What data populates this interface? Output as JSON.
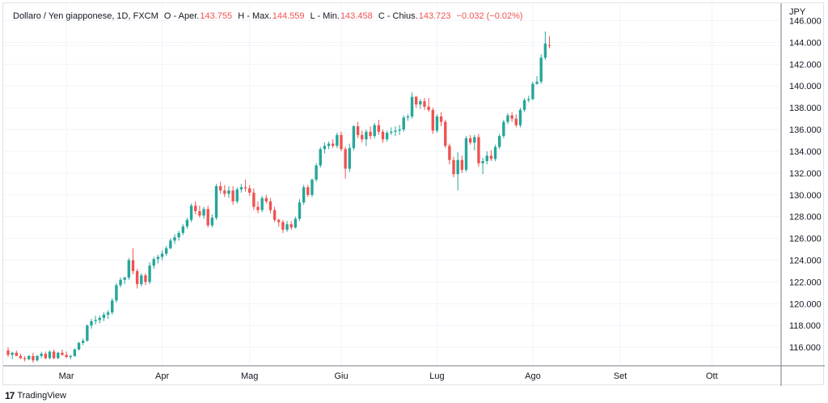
{
  "legend": {
    "symbol": "Dollaro / Yen giapponese, 1D, FXCM",
    "open_label": "O - Aper.",
    "open": "143.755",
    "high_label": "H - Max.",
    "high": "144.559",
    "low_label": "L - Min.",
    "low": "143.458",
    "close_label": "C - Chius.",
    "close": "143.723",
    "change": "−0.032 (−0.02%)"
  },
  "footer": {
    "logo": "17",
    "brand": "TradingView"
  },
  "colors": {
    "up": "#26a69a",
    "down": "#ef5350",
    "grid": "#f0f3fa",
    "axis": "#787b86"
  },
  "chart_data": {
    "type": "candlestick",
    "title": "Dollaro / Yen giapponese, 1D, FXCM",
    "currency_label": "JPY",
    "ylim": [
      114.3,
      147.6
    ],
    "y_ticks": [
      116,
      118,
      120,
      122,
      124,
      126,
      128,
      130,
      132,
      134,
      136,
      138,
      140,
      142,
      144,
      146
    ],
    "y_tick_labels": [
      "116.000",
      "118.000",
      "120.000",
      "122.000",
      "124.000",
      "126.000",
      "128.000",
      "130.000",
      "132.000",
      "134.000",
      "136.000",
      "138.000",
      "140.000",
      "142.000",
      "144.000",
      "146.000"
    ],
    "x_labels": [
      "Mar",
      "Apr",
      "Mag",
      "Giu",
      "Lug",
      "Ago",
      "Set",
      "Ott"
    ],
    "x_label_index": [
      14,
      37,
      58,
      80,
      103,
      126,
      147,
      169
    ],
    "last_price": 143.723,
    "ohlc": [
      [
        115.7,
        116.0,
        115.1,
        115.3
      ],
      [
        115.3,
        115.6,
        114.9,
        115.5
      ],
      [
        115.5,
        115.7,
        115.2,
        115.2
      ],
      [
        115.2,
        115.4,
        114.9,
        115.0
      ],
      [
        115.0,
        115.2,
        114.7,
        114.9
      ],
      [
        114.9,
        115.3,
        114.8,
        115.2
      ],
      [
        115.2,
        115.5,
        114.6,
        114.8
      ],
      [
        114.8,
        115.3,
        114.7,
        115.2
      ],
      [
        115.2,
        115.6,
        115.0,
        115.4
      ],
      [
        115.4,
        115.6,
        114.9,
        115.0
      ],
      [
        115.0,
        115.7,
        114.9,
        115.6
      ],
      [
        115.6,
        115.8,
        114.9,
        115.0
      ],
      [
        115.0,
        115.6,
        114.9,
        115.5
      ],
      [
        115.5,
        115.8,
        115.2,
        115.3
      ],
      [
        115.3,
        115.6,
        115.0,
        115.1
      ],
      [
        115.1,
        115.3,
        114.9,
        115.2
      ],
      [
        115.2,
        115.9,
        115.1,
        115.8
      ],
      [
        115.8,
        116.5,
        115.7,
        116.4
      ],
      [
        116.4,
        116.8,
        116.2,
        116.6
      ],
      [
        116.6,
        118.1,
        116.5,
        118.0
      ],
      [
        118.0,
        118.6,
        117.7,
        118.4
      ],
      [
        118.4,
        118.9,
        118.1,
        118.5
      ],
      [
        118.5,
        118.9,
        118.2,
        118.7
      ],
      [
        118.7,
        119.2,
        118.4,
        119.0
      ],
      [
        119.0,
        119.4,
        118.6,
        119.2
      ],
      [
        119.2,
        120.5,
        119.0,
        120.3
      ],
      [
        120.3,
        121.9,
        120.1,
        121.7
      ],
      [
        121.7,
        122.4,
        121.5,
        122.2
      ],
      [
        122.2,
        122.5,
        121.8,
        122.4
      ],
      [
        122.4,
        124.2,
        122.2,
        124.0
      ],
      [
        124.0,
        125.1,
        122.7,
        123.0
      ],
      [
        123.0,
        123.2,
        121.4,
        121.8
      ],
      [
        121.8,
        122.8,
        121.6,
        122.6
      ],
      [
        122.6,
        122.8,
        121.7,
        122.0
      ],
      [
        122.0,
        123.8,
        121.8,
        123.5
      ],
      [
        123.5,
        124.3,
        123.2,
        124.1
      ],
      [
        124.1,
        124.5,
        123.7,
        124.3
      ],
      [
        124.3,
        124.9,
        124.0,
        124.6
      ],
      [
        124.6,
        125.3,
        124.4,
        125.1
      ],
      [
        125.1,
        126.0,
        125.0,
        125.8
      ],
      [
        125.8,
        126.4,
        125.5,
        126.1
      ],
      [
        126.1,
        126.7,
        125.8,
        126.5
      ],
      [
        126.5,
        127.3,
        126.3,
        127.1
      ],
      [
        127.1,
        127.9,
        126.9,
        127.7
      ],
      [
        127.7,
        129.2,
        127.5,
        129.0
      ],
      [
        129.0,
        129.4,
        128.2,
        128.5
      ],
      [
        128.5,
        129.0,
        127.9,
        128.1
      ],
      [
        128.1,
        128.9,
        127.8,
        128.7
      ],
      [
        128.7,
        129.0,
        127.0,
        127.2
      ],
      [
        127.2,
        128.2,
        127.0,
        127.9
      ],
      [
        127.9,
        131.0,
        127.7,
        130.8
      ],
      [
        130.8,
        131.2,
        130.1,
        130.4
      ],
      [
        130.4,
        130.9,
        129.8,
        130.1
      ],
      [
        130.1,
        130.8,
        129.7,
        130.4
      ],
      [
        130.4,
        130.8,
        129.1,
        129.4
      ],
      [
        129.4,
        130.7,
        129.2,
        130.5
      ],
      [
        130.5,
        131.0,
        130.2,
        130.7
      ],
      [
        130.7,
        131.4,
        130.3,
        130.6
      ],
      [
        130.6,
        130.9,
        129.9,
        130.2
      ],
      [
        130.2,
        130.6,
        128.6,
        128.9
      ],
      [
        128.9,
        129.4,
        128.3,
        128.6
      ],
      [
        128.6,
        129.9,
        128.4,
        129.7
      ],
      [
        129.7,
        130.0,
        129.2,
        129.4
      ],
      [
        129.4,
        129.7,
        128.3,
        128.6
      ],
      [
        128.6,
        128.9,
        127.5,
        127.7
      ],
      [
        127.7,
        127.8,
        127.1,
        127.5
      ],
      [
        127.5,
        127.7,
        126.5,
        126.8
      ],
      [
        126.8,
        127.6,
        126.6,
        127.3
      ],
      [
        127.3,
        127.6,
        126.8,
        127.0
      ],
      [
        127.0,
        128.0,
        126.9,
        127.8
      ],
      [
        127.8,
        129.6,
        127.6,
        129.3
      ],
      [
        129.3,
        130.9,
        129.1,
        130.7
      ],
      [
        130.7,
        130.9,
        129.8,
        130.0
      ],
      [
        130.0,
        131.5,
        129.8,
        131.4
      ],
      [
        131.4,
        132.9,
        131.2,
        132.7
      ],
      [
        132.7,
        134.4,
        132.5,
        134.2
      ],
      [
        134.2,
        134.8,
        133.8,
        134.5
      ],
      [
        134.5,
        134.9,
        134.2,
        134.7
      ],
      [
        134.7,
        135.1,
        134.3,
        134.5
      ],
      [
        134.5,
        135.7,
        134.3,
        135.5
      ],
      [
        135.5,
        135.8,
        134.0,
        134.2
      ],
      [
        134.2,
        134.4,
        131.5,
        132.4
      ],
      [
        132.4,
        134.7,
        132.1,
        134.3
      ],
      [
        134.3,
        136.4,
        134.1,
        136.3
      ],
      [
        136.3,
        136.7,
        135.2,
        135.5
      ],
      [
        135.5,
        135.9,
        134.8,
        135.1
      ],
      [
        135.1,
        136.0,
        134.5,
        135.8
      ],
      [
        135.8,
        136.3,
        135.1,
        135.4
      ],
      [
        135.4,
        136.6,
        135.2,
        136.4
      ],
      [
        136.4,
        136.9,
        135.5,
        135.8
      ],
      [
        135.8,
        136.0,
        134.8,
        135.1
      ],
      [
        135.1,
        135.9,
        134.9,
        135.7
      ],
      [
        135.7,
        136.2,
        135.5,
        135.8
      ],
      [
        135.8,
        136.3,
        135.4,
        135.9
      ],
      [
        135.9,
        136.4,
        135.5,
        136.0
      ],
      [
        136.0,
        137.3,
        135.8,
        137.1
      ],
      [
        137.1,
        137.4,
        136.8,
        137.2
      ],
      [
        137.2,
        139.4,
        137.0,
        139.0
      ],
      [
        139.0,
        139.1,
        138.0,
        138.3
      ],
      [
        138.3,
        138.8,
        137.9,
        138.6
      ],
      [
        138.6,
        138.9,
        137.8,
        138.1
      ],
      [
        138.1,
        138.9,
        137.6,
        137.8
      ],
      [
        137.8,
        138.0,
        135.6,
        135.9
      ],
      [
        135.9,
        137.4,
        135.7,
        137.2
      ],
      [
        137.2,
        137.6,
        136.3,
        136.7
      ],
      [
        136.7,
        136.9,
        134.3,
        134.5
      ],
      [
        134.5,
        134.7,
        132.8,
        133.2
      ],
      [
        133.2,
        133.5,
        131.6,
        131.9
      ],
      [
        131.9,
        133.9,
        130.4,
        133.2
      ],
      [
        133.2,
        133.6,
        132.0,
        132.3
      ],
      [
        132.3,
        135.4,
        132.1,
        135.2
      ],
      [
        135.2,
        135.5,
        134.6,
        134.8
      ],
      [
        134.8,
        135.5,
        134.1,
        135.3
      ],
      [
        135.3,
        135.6,
        132.6,
        132.9
      ],
      [
        132.9,
        133.4,
        131.9,
        133.1
      ],
      [
        133.1,
        134.0,
        132.8,
        133.6
      ],
      [
        133.6,
        134.1,
        133.1,
        133.3
      ],
      [
        133.3,
        134.6,
        133.1,
        134.4
      ],
      [
        134.4,
        135.6,
        134.2,
        135.4
      ],
      [
        135.4,
        136.9,
        135.2,
        136.7
      ],
      [
        136.7,
        137.5,
        136.5,
        137.3
      ],
      [
        137.3,
        137.6,
        136.7,
        137.0
      ],
      [
        137.0,
        137.4,
        136.2,
        136.4
      ],
      [
        136.4,
        138.0,
        136.2,
        137.8
      ],
      [
        137.8,
        138.9,
        137.6,
        138.7
      ],
      [
        138.7,
        139.1,
        138.5,
        138.8
      ],
      [
        138.8,
        140.4,
        138.7,
        140.2
      ],
      [
        140.2,
        140.9,
        140.1,
        140.4
      ],
      [
        140.4,
        142.9,
        140.2,
        142.6
      ],
      [
        142.6,
        145.0,
        142.4,
        143.9
      ],
      [
        143.755,
        144.559,
        143.458,
        143.723
      ]
    ]
  }
}
